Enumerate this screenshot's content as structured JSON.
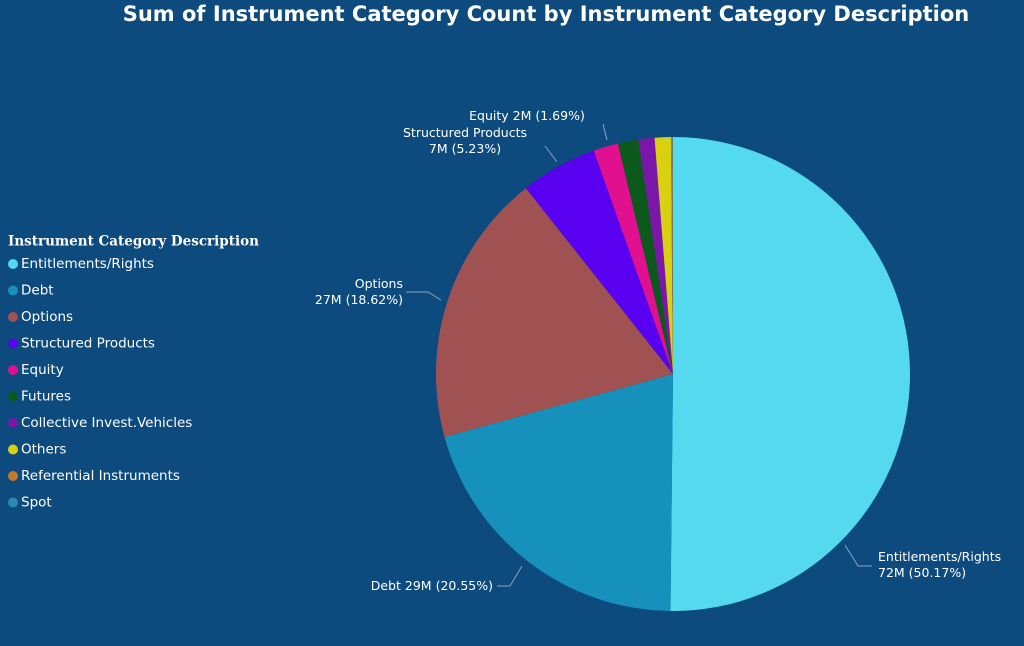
{
  "chart_data": {
    "type": "pie",
    "title": "Sum of Instrument Category Count by Instrument Category Description",
    "legend_title": "Instrument Category Description",
    "legend_position": "left",
    "categories": [
      "Entitlements/Rights",
      "Debt",
      "Options",
      "Structured Products",
      "Equity",
      "Futures",
      "Collective Invest.Vehicles",
      "Others",
      "Referential Instruments",
      "Spot"
    ],
    "values": [
      50.17,
      20.55,
      18.62,
      5.23,
      1.69,
      1.4,
      1.1,
      1.1,
      0.1,
      0.04
    ],
    "value_labels": [
      "72M (50.17%)",
      "29M (20.55%)",
      "27M (18.62%)",
      "7M (5.23%)",
      "2M (1.69%)",
      null,
      null,
      null,
      null,
      null
    ],
    "colors": [
      "#55d9ef",
      "#1591bb",
      "#a05252",
      "#5a00f0",
      "#e0108f",
      "#0b5a1c",
      "#7a16a8",
      "#d8d010",
      "#c07a2a",
      "#2a8aa8"
    ]
  }
}
